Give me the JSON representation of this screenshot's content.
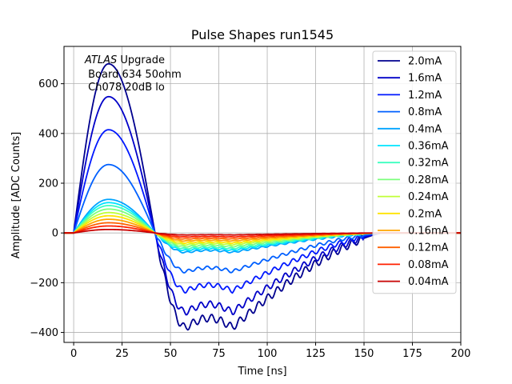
{
  "chart_data": {
    "type": "line",
    "title": "Pulse Shapes run1545",
    "xlabel": "Time [ns]",
    "ylabel": "Amplitude [ADC Counts]",
    "xlim": [
      -5,
      200
    ],
    "ylim": [
      -440,
      750
    ],
    "xticks": [
      0,
      25,
      50,
      75,
      100,
      125,
      150,
      175,
      200
    ],
    "yticks": [
      -400,
      -200,
      0,
      200,
      400,
      600
    ],
    "grid": true,
    "legend_position": "top-right",
    "annotation": {
      "prefix": "ATLAS",
      "line1_rest": " Upgrade",
      "line2": " Board 634 50ohm",
      "line3": " Ch078 20dB lo"
    },
    "series": [
      {
        "name": "2.0mA",
        "color": "#00008f",
        "peak": 680,
        "trough": -380
      },
      {
        "name": "1.6mA",
        "color": "#0000c8",
        "peak": 548,
        "trough": -318
      },
      {
        "name": "1.2mA",
        "color": "#0018ff",
        "peak": 415,
        "trough": -232
      },
      {
        "name": "0.8mA",
        "color": "#0060ff",
        "peak": 275,
        "trough": -155
      },
      {
        "name": "0.4mA",
        "color": "#00a4ff",
        "peak": 135,
        "trough": -78
      },
      {
        "name": "0.36mA",
        "color": "#00e4ff",
        "peak": 122,
        "trough": -70
      },
      {
        "name": "0.32mA",
        "color": "#3cffc0",
        "peak": 110,
        "trough": -63
      },
      {
        "name": "0.28mA",
        "color": "#7cff7c",
        "peak": 96,
        "trough": -55
      },
      {
        "name": "0.24mA",
        "color": "#c0ff38",
        "peak": 82,
        "trough": -47
      },
      {
        "name": "0.2mA",
        "color": "#ffe400",
        "peak": 69,
        "trough": -40
      },
      {
        "name": "0.16mA",
        "color": "#ffa400",
        "peak": 55,
        "trough": -32
      },
      {
        "name": "0.12mA",
        "color": "#ff6000",
        "peak": 41,
        "trough": -24
      },
      {
        "name": "0.08mA",
        "color": "#ff2000",
        "peak": 28,
        "trough": -16
      },
      {
        "name": "0.04mA",
        "color": "#c80000",
        "peak": 14,
        "trough": -8
      }
    ]
  }
}
